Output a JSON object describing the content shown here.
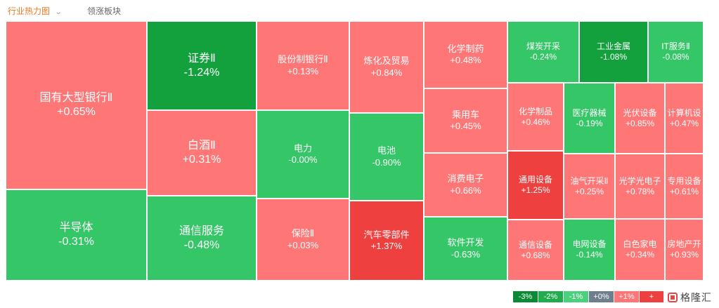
{
  "tabs": {
    "active": "行业热力图",
    "inactive": "领涨板块"
  },
  "colors": {
    "up_strong": "#ef4040",
    "up": "#ff7676",
    "down": "#35c667",
    "down_strong": "#12a13d",
    "neutral": "#6f7e8c"
  },
  "tiles": [
    {
      "name": "国有大型银行Ⅱ",
      "change": "+0.65%",
      "level": "up"
    },
    {
      "name": "半导体",
      "change": "-0.31%",
      "level": "down"
    },
    {
      "name": "证券Ⅱ",
      "change": "-1.24%",
      "level": "down_strong"
    },
    {
      "name": "白酒Ⅱ",
      "change": "+0.31%",
      "level": "up"
    },
    {
      "name": "通信服务",
      "change": "-0.48%",
      "level": "down"
    },
    {
      "name": "股份制银行Ⅱ",
      "change": "+0.13%",
      "level": "up"
    },
    {
      "name": "电力",
      "change": "-0.00%",
      "level": "down"
    },
    {
      "name": "保险Ⅱ",
      "change": "+0.03%",
      "level": "up"
    },
    {
      "name": "炼化及贸易",
      "change": "+0.84%",
      "level": "up"
    },
    {
      "name": "电池",
      "change": "-0.90%",
      "level": "down"
    },
    {
      "name": "汽车零部件",
      "change": "+1.37%",
      "level": "up_strong"
    },
    {
      "name": "化学制药",
      "change": "+0.48%",
      "level": "up"
    },
    {
      "name": "乘用车",
      "change": "+0.45%",
      "level": "up"
    },
    {
      "name": "消费电子",
      "change": "+0.66%",
      "level": "up"
    },
    {
      "name": "软件开发",
      "change": "-0.63%",
      "level": "down"
    },
    {
      "name": "煤炭开采",
      "change": "-0.24%",
      "level": "down"
    },
    {
      "name": "工业金属",
      "change": "-1.08%",
      "level": "down_strong"
    },
    {
      "name": "IT服务Ⅱ",
      "change": "-0.08%",
      "level": "down"
    },
    {
      "name": "化学制品",
      "change": "+0.46%",
      "level": "up"
    },
    {
      "name": "医疗器械",
      "change": "-0.19%",
      "level": "down"
    },
    {
      "name": "光伏设备",
      "change": "+0.85%",
      "level": "up"
    },
    {
      "name": "计算机设",
      "change": "+0.47%",
      "level": "up"
    },
    {
      "name": "通用设备",
      "change": "+1.25%",
      "level": "up_strong"
    },
    {
      "name": "油气开采Ⅱ",
      "change": "+0.25%",
      "level": "up"
    },
    {
      "name": "光学光电子",
      "change": "+0.78%",
      "level": "up"
    },
    {
      "name": "专用设备",
      "change": "+0.61%",
      "level": "up"
    },
    {
      "name": "通信设备",
      "change": "+0.68%",
      "level": "up"
    },
    {
      "name": "电网设备",
      "change": "-0.14%",
      "level": "down"
    },
    {
      "name": "白色家电",
      "change": "+0.34%",
      "level": "up"
    },
    {
      "name": "房地产开",
      "change": "+0.93%",
      "level": "up"
    }
  ],
  "legend": [
    {
      "label": "-3%",
      "color": "#0b8a35"
    },
    {
      "label": "-2%",
      "color": "#21ad4e"
    },
    {
      "label": "-1%",
      "color": "#4bd07c"
    },
    {
      "label": "+0%",
      "color": "#6f7e8c"
    },
    {
      "label": "+1%",
      "color": "#ff7676"
    },
    {
      "label": "+",
      "color": "#ef4040"
    }
  ],
  "watermark": "格隆汇"
}
